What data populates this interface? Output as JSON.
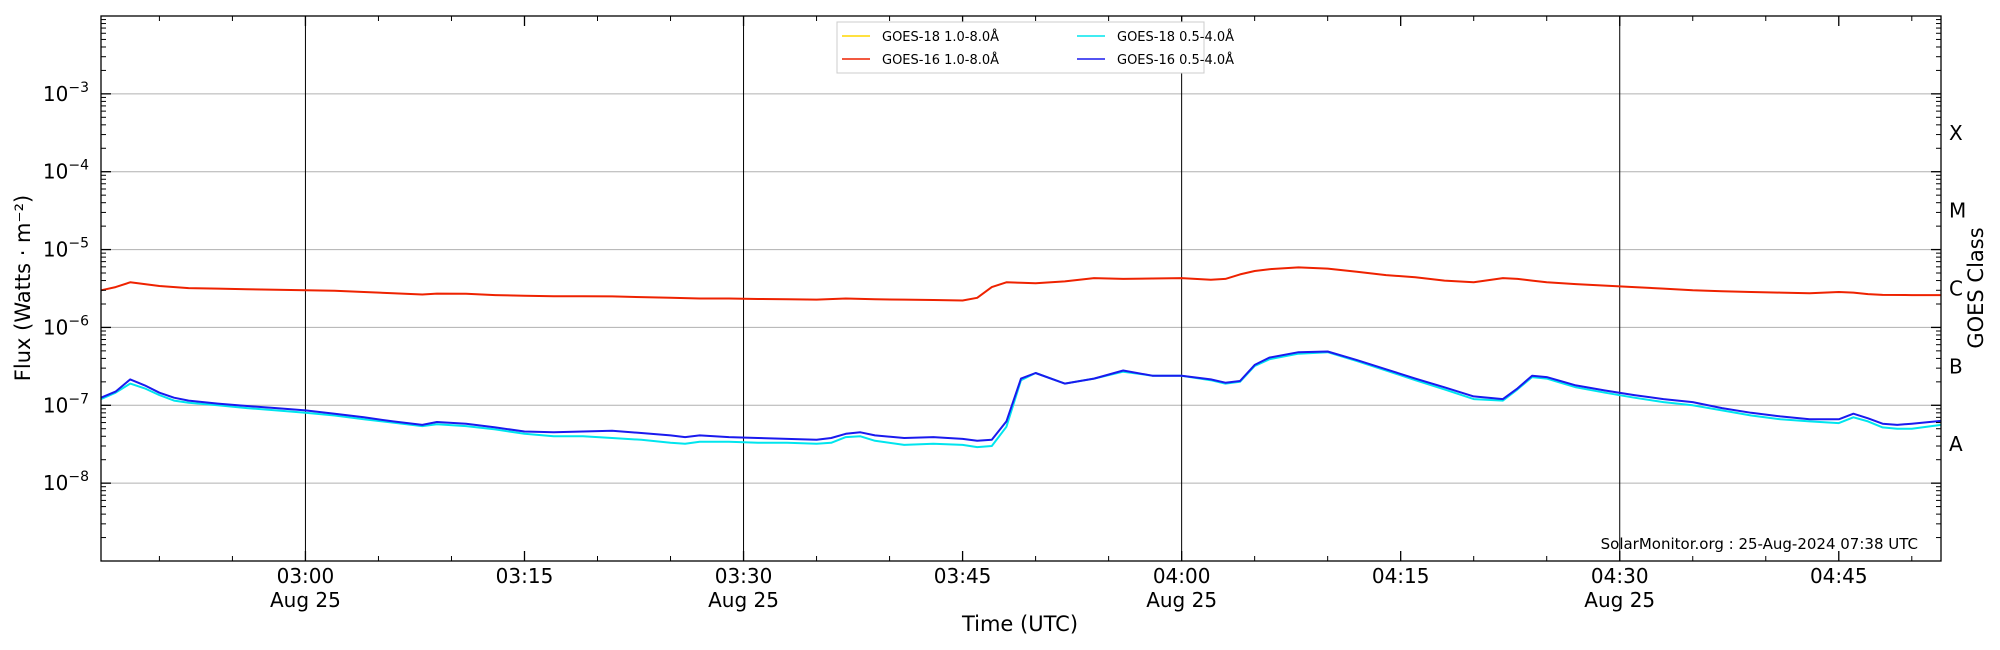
{
  "chart_data": {
    "type": "line",
    "xlabel": "Time (UTC)",
    "ylabel": "Flux (Watts · m⁻²)",
    "y2label": "GOES Class",
    "yscale": "log",
    "ylim": [
      1e-09,
      0.01
    ],
    "xlim": [
      "02:46",
      "04:52"
    ],
    "grid": "horizontal at each decade",
    "legend_position": "top-center",
    "credit": "SolarMonitor.org : 25-Aug-2024 07:38 UTC",
    "x_ticks": [
      {
        "time": "03:00",
        "label": "03:00",
        "date": "Aug 25"
      },
      {
        "time": "03:15",
        "label": "03:15",
        "date": ""
      },
      {
        "time": "03:30",
        "label": "03:30",
        "date": "Aug 25"
      },
      {
        "time": "03:45",
        "label": "03:45",
        "date": ""
      },
      {
        "time": "04:00",
        "label": "04:00",
        "date": "Aug 25"
      },
      {
        "time": "04:15",
        "label": "04:15",
        "date": ""
      },
      {
        "time": "04:30",
        "label": "04:30",
        "date": "Aug 25"
      },
      {
        "time": "04:45",
        "label": "04:45",
        "date": ""
      }
    ],
    "y_ticks": [
      {
        "exp": -3,
        "mant": "10",
        "sup": "−3"
      },
      {
        "exp": -4,
        "mant": "10",
        "sup": "−4"
      },
      {
        "exp": -5,
        "mant": "10",
        "sup": "−5"
      },
      {
        "exp": -6,
        "mant": "10",
        "sup": "−6"
      },
      {
        "exp": -7,
        "mant": "10",
        "sup": "−7"
      },
      {
        "exp": -8,
        "mant": "10",
        "sup": "−8"
      }
    ],
    "vlines": [
      "03:00",
      "03:30",
      "04:00",
      "04:30"
    ],
    "goes_classes": [
      {
        "label": "X",
        "exp": -3.5
      },
      {
        "label": "M",
        "exp": -4.5
      },
      {
        "label": "C",
        "exp": -5.5
      },
      {
        "label": "B",
        "exp": -6.5
      },
      {
        "label": "A",
        "exp": -7.5
      }
    ],
    "series": [
      {
        "name": "GOES-18 1.0-8.0Å",
        "color": "#ffd700",
        "x": [],
        "y": []
      },
      {
        "name": "GOES-16 1.0-8.0Å",
        "color": "#ee2200",
        "x": [
          "02:46",
          "02:47",
          "02:48",
          "02:49",
          "02:50",
          "02:52",
          "02:54",
          "02:56",
          "02:58",
          "03:00",
          "03:02",
          "03:04",
          "03:06",
          "03:08",
          "03:09",
          "03:11",
          "03:13",
          "03:15",
          "03:17",
          "03:19",
          "03:21",
          "03:23",
          "03:25",
          "03:27",
          "03:29",
          "03:31",
          "03:33",
          "03:35",
          "03:37",
          "03:39",
          "03:41",
          "03:43",
          "03:45",
          "03:46",
          "03:47",
          "03:48",
          "03:49",
          "03:50",
          "03:52",
          "03:54",
          "03:56",
          "03:58",
          "04:00",
          "04:02",
          "04:03",
          "04:04",
          "04:05",
          "04:06",
          "04:08",
          "04:10",
          "04:12",
          "04:14",
          "04:16",
          "04:18",
          "04:20",
          "04:22",
          "04:23",
          "04:24",
          "04:25",
          "04:27",
          "04:29",
          "04:31",
          "04:33",
          "04:35",
          "04:37",
          "04:39",
          "04:41",
          "04:43",
          "04:45",
          "04:46",
          "04:47",
          "04:48",
          "04:50",
          "04:52"
        ],
        "y": [
          3e-06,
          3.3e-06,
          3.8e-06,
          3.6e-06,
          3.4e-06,
          3.2e-06,
          3.15e-06,
          3.1e-06,
          3.05e-06,
          3e-06,
          2.95e-06,
          2.85e-06,
          2.75e-06,
          2.65e-06,
          2.72e-06,
          2.7e-06,
          2.6e-06,
          2.55e-06,
          2.52e-06,
          2.52e-06,
          2.5e-06,
          2.45e-06,
          2.4e-06,
          2.35e-06,
          2.35e-06,
          2.32e-06,
          2.3e-06,
          2.28e-06,
          2.35e-06,
          2.3e-06,
          2.28e-06,
          2.25e-06,
          2.22e-06,
          2.4e-06,
          3.3e-06,
          3.8e-06,
          3.75e-06,
          3.7e-06,
          3.9e-06,
          4.3e-06,
          4.2e-06,
          4.25e-06,
          4.3e-06,
          4.1e-06,
          4.2e-06,
          4.8e-06,
          5.3e-06,
          5.6e-06,
          5.9e-06,
          5.7e-06,
          5.2e-06,
          4.7e-06,
          4.4e-06,
          4e-06,
          3.8e-06,
          4.3e-06,
          4.2e-06,
          4e-06,
          3.8e-06,
          3.6e-06,
          3.45e-06,
          3.3e-06,
          3.15e-06,
          3e-06,
          2.92e-06,
          2.85e-06,
          2.8e-06,
          2.75e-06,
          2.85e-06,
          2.8e-06,
          2.68e-06,
          2.62e-06,
          2.6e-06,
          2.6e-06
        ]
      },
      {
        "name": "GOES-18 0.5-4.0Å",
        "color": "#00e5ee",
        "x": [
          "02:46",
          "02:47",
          "02:48",
          "02:49",
          "02:50",
          "02:51",
          "02:52",
          "02:54",
          "02:56",
          "02:58",
          "03:00",
          "03:02",
          "03:04",
          "03:06",
          "03:08",
          "03:09",
          "03:11",
          "03:13",
          "03:15",
          "03:17",
          "03:19",
          "03:21",
          "03:23",
          "03:25",
          "03:26",
          "03:27",
          "03:29",
          "03:31",
          "03:33",
          "03:35",
          "03:36",
          "03:37",
          "03:38",
          "03:39",
          "03:41",
          "03:43",
          "03:45",
          "03:46",
          "03:47",
          "03:48",
          "03:49",
          "03:50",
          "03:52",
          "03:54",
          "03:56",
          "03:58",
          "04:00",
          "04:02",
          "04:03",
          "04:04",
          "04:05",
          "04:06",
          "04:08",
          "04:10",
          "04:12",
          "04:14",
          "04:16",
          "04:18",
          "04:20",
          "04:22",
          "04:23",
          "04:24",
          "04:25",
          "04:27",
          "04:29",
          "04:31",
          "04:33",
          "04:35",
          "04:37",
          "04:39",
          "04:41",
          "04:43",
          "04:45",
          "04:46",
          "04:47",
          "04:48",
          "04:49",
          "04:50",
          "04:52"
        ],
        "y": [
          1.2e-07,
          1.45e-07,
          1.9e-07,
          1.65e-07,
          1.35e-07,
          1.15e-07,
          1.08e-07,
          1e-07,
          9.2e-08,
          8.6e-08,
          8e-08,
          7.4e-08,
          6.6e-08,
          6e-08,
          5.4e-08,
          5.7e-08,
          5.4e-08,
          4.9e-08,
          4.3e-08,
          4e-08,
          4e-08,
          3.8e-08,
          3.6e-08,
          3.3e-08,
          3.2e-08,
          3.4e-08,
          3.4e-08,
          3.3e-08,
          3.3e-08,
          3.2e-08,
          3.3e-08,
          3.9e-08,
          4e-08,
          3.5e-08,
          3.1e-08,
          3.2e-08,
          3.1e-08,
          2.9e-08,
          3e-08,
          5.3e-08,
          2.1e-07,
          2.6e-07,
          1.9e-07,
          2.2e-07,
          2.7e-07,
          2.4e-07,
          2.4e-07,
          2.1e-07,
          1.9e-07,
          2e-07,
          3.2e-07,
          3.9e-07,
          4.6e-07,
          4.8e-07,
          3.7e-07,
          2.8e-07,
          2.1e-07,
          1.6e-07,
          1.2e-07,
          1.15e-07,
          1.6e-07,
          2.3e-07,
          2.2e-07,
          1.7e-07,
          1.45e-07,
          1.25e-07,
          1.1e-07,
          1e-07,
          8.6e-08,
          7.4e-08,
          6.6e-08,
          6.2e-08,
          5.9e-08,
          7e-08,
          6.2e-08,
          5.2e-08,
          5e-08,
          5e-08,
          5.6e-08
        ]
      },
      {
        "name": "GOES-16 0.5-4.0Å",
        "color": "#1a1aee",
        "x": [
          "02:46",
          "02:47",
          "02:48",
          "02:49",
          "02:50",
          "02:51",
          "02:52",
          "02:54",
          "02:56",
          "02:58",
          "03:00",
          "03:02",
          "03:04",
          "03:06",
          "03:08",
          "03:09",
          "03:11",
          "03:13",
          "03:15",
          "03:17",
          "03:19",
          "03:21",
          "03:23",
          "03:25",
          "03:26",
          "03:27",
          "03:29",
          "03:31",
          "03:33",
          "03:35",
          "03:36",
          "03:37",
          "03:38",
          "03:39",
          "03:41",
          "03:43",
          "03:45",
          "03:46",
          "03:47",
          "03:48",
          "03:49",
          "03:50",
          "03:52",
          "03:54",
          "03:56",
          "03:58",
          "04:00",
          "04:02",
          "04:03",
          "04:04",
          "04:05",
          "04:06",
          "04:08",
          "04:10",
          "04:12",
          "04:14",
          "04:16",
          "04:18",
          "04:20",
          "04:22",
          "04:23",
          "04:24",
          "04:25",
          "04:27",
          "04:29",
          "04:31",
          "04:33",
          "04:35",
          "04:37",
          "04:39",
          "04:41",
          "04:43",
          "04:45",
          "04:46",
          "04:47",
          "04:48",
          "04:49",
          "04:50",
          "04:52"
        ],
        "y": [
          1.25e-07,
          1.5e-07,
          2.15e-07,
          1.8e-07,
          1.45e-07,
          1.25e-07,
          1.15e-07,
          1.05e-07,
          9.8e-08,
          9.2e-08,
          8.6e-08,
          7.8e-08,
          7e-08,
          6.2e-08,
          5.6e-08,
          6.1e-08,
          5.8e-08,
          5.2e-08,
          4.6e-08,
          4.5e-08,
          4.6e-08,
          4.7e-08,
          4.4e-08,
          4.1e-08,
          3.9e-08,
          4.1e-08,
          3.9e-08,
          3.8e-08,
          3.7e-08,
          3.6e-08,
          3.8e-08,
          4.3e-08,
          4.5e-08,
          4.1e-08,
          3.8e-08,
          3.9e-08,
          3.7e-08,
          3.5e-08,
          3.6e-08,
          6.2e-08,
          2.2e-07,
          2.6e-07,
          1.9e-07,
          2.2e-07,
          2.8e-07,
          2.4e-07,
          2.4e-07,
          2.15e-07,
          1.95e-07,
          2.05e-07,
          3.3e-07,
          4.1e-07,
          4.8e-07,
          4.9e-07,
          3.8e-07,
          2.9e-07,
          2.2e-07,
          1.7e-07,
          1.3e-07,
          1.2e-07,
          1.65e-07,
          2.4e-07,
          2.3e-07,
          1.8e-07,
          1.55e-07,
          1.35e-07,
          1.2e-07,
          1.1e-07,
          9.2e-08,
          8e-08,
          7.2e-08,
          6.6e-08,
          6.6e-08,
          7.8e-08,
          6.8e-08,
          5.8e-08,
          5.6e-08,
          5.8e-08,
          6.3e-08
        ]
      }
    ]
  }
}
